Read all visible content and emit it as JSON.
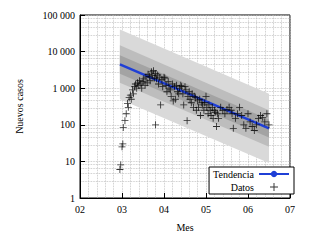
{
  "chart_data": {
    "type": "scatter",
    "x_label": "Mes",
    "y_label": "Nuevos casos",
    "log": "y",
    "grid": true,
    "legend": "lower right",
    "xlim": [
      2,
      7
    ],
    "xticks": [
      {
        "value": 2,
        "label": "02"
      },
      {
        "value": 3,
        "label": "03"
      },
      {
        "value": 4,
        "label": "04"
      },
      {
        "value": 5,
        "label": "05"
      },
      {
        "value": 6,
        "label": "06"
      },
      {
        "value": 7,
        "label": "07"
      }
    ],
    "ylim": [
      1,
      100000
    ],
    "yticks": [
      1,
      10,
      100,
      {
        "value": 1000,
        "label": "1 000"
      },
      {
        "value": 10000,
        "label": "10 000"
      },
      {
        "value": 100000,
        "label": "100 000"
      }
    ],
    "bands": [
      {
        "x": [
          2.95,
          6.5
        ],
        "lower": [
          500,
          9
        ],
        "upper": [
          40000,
          700
        ],
        "color": "#d9d9d9"
      },
      {
        "x": [
          2.95,
          6.5
        ],
        "lower": [
          1400,
          25
        ],
        "upper": [
          15000,
          250
        ],
        "color": "#bdbdbd"
      },
      {
        "x": [
          2.95,
          6.5
        ],
        "lower": [
          2500,
          45
        ],
        "upper": [
          8000,
          140
        ],
        "color": "#a3a3a3"
      }
    ],
    "series": [
      {
        "name": "Tendencia",
        "type": "line",
        "color": "#1f3fd6",
        "line_style": "solid",
        "x": [
          2.95,
          6.5
        ],
        "values": [
          4500,
          80
        ]
      },
      {
        "name": "Datos",
        "type": "scatter",
        "color": "#000000",
        "marker": "+",
        "x": [
          2.95,
          2.97,
          3.0,
          3.02,
          3.03,
          3.07,
          3.1,
          3.13,
          3.15,
          3.17,
          3.2,
          3.22,
          3.25,
          3.27,
          3.3,
          3.32,
          3.35,
          3.37,
          3.4,
          3.42,
          3.45,
          3.47,
          3.5,
          3.52,
          3.55,
          3.57,
          3.6,
          3.62,
          3.65,
          3.67,
          3.7,
          3.72,
          3.75,
          3.77,
          3.8,
          3.8,
          3.82,
          3.85,
          3.87,
          3.9,
          3.92,
          3.95,
          3.97,
          4.0,
          4.02,
          4.05,
          4.07,
          4.1,
          4.12,
          4.15,
          4.17,
          4.2,
          4.22,
          4.25,
          4.27,
          4.3,
          4.32,
          4.35,
          4.37,
          4.4,
          4.42,
          4.45,
          4.47,
          4.5,
          4.52,
          4.55,
          4.57,
          4.6,
          4.62,
          4.65,
          4.67,
          4.7,
          4.72,
          4.75,
          4.77,
          4.8,
          4.82,
          4.85,
          4.87,
          4.9,
          4.92,
          4.95,
          4.97,
          5.0,
          5.02,
          5.05,
          5.07,
          5.1,
          5.12,
          5.15,
          5.17,
          5.2,
          5.22,
          5.25,
          5.27,
          5.3,
          5.35,
          5.4,
          5.45,
          5.5,
          5.55,
          5.6,
          5.62,
          5.65,
          5.7,
          5.75,
          5.8,
          5.85,
          5.9,
          5.95,
          6.0,
          6.05,
          6.1,
          6.15,
          6.2,
          6.25,
          6.3,
          6.35,
          6.4,
          6.45,
          6.5
        ],
        "values": [
          6,
          8,
          25,
          30,
          85,
          130,
          200,
          380,
          300,
          550,
          650,
          500,
          900,
          700,
          1100,
          1300,
          1000,
          1400,
          1200,
          1600,
          1300,
          1000,
          1500,
          1800,
          1200,
          2000,
          1400,
          2400,
          2100,
          1600,
          2800,
          2200,
          3000,
          1900,
          100,
          2500,
          1800,
          2300,
          1300,
          2000,
          350,
          1700,
          1100,
          2000,
          1900,
          1200,
          800,
          1500,
          1000,
          900,
          600,
          1300,
          450,
          1100,
          500,
          1200,
          800,
          700,
          1000,
          1200,
          1100,
          700,
          350,
          1100,
          900,
          130,
          600,
          800,
          500,
          400,
          700,
          300,
          600,
          550,
          250,
          450,
          300,
          500,
          180,
          400,
          350,
          250,
          400,
          600,
          300,
          200,
          350,
          250,
          180,
          300,
          150,
          250,
          220,
          90,
          200,
          150,
          300,
          250,
          200,
          260,
          300,
          250,
          200,
          80,
          150,
          200,
          300,
          180,
          100,
          80,
          200,
          120,
          90,
          70,
          100,
          150,
          180,
          160,
          120,
          200,
          100
        ]
      }
    ]
  }
}
